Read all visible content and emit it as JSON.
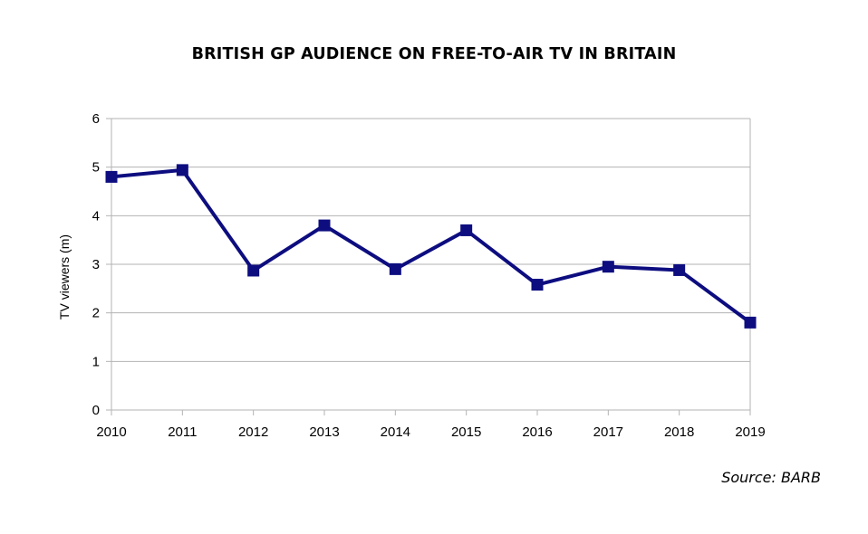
{
  "chart_data": {
    "type": "line",
    "title": "BRITISH GP AUDIENCE ON FREE-TO-AIR TV IN BRITAIN",
    "xlabel": "",
    "ylabel": "TV viewers (m)",
    "categories": [
      "2010",
      "2011",
      "2012",
      "2013",
      "2014",
      "2015",
      "2016",
      "2017",
      "2018",
      "2019"
    ],
    "series": [
      {
        "values": [
          4.8,
          4.94,
          2.87,
          3.8,
          2.9,
          3.7,
          2.58,
          2.95,
          2.88,
          1.8
        ],
        "color": "#0d0d80",
        "marker": "square"
      }
    ],
    "ylim": [
      0,
      6
    ],
    "yticks": [
      "0",
      "1",
      "2",
      "3",
      "4",
      "5",
      "6"
    ],
    "grid": true,
    "legend": "none"
  },
  "source": "Source: BARB"
}
